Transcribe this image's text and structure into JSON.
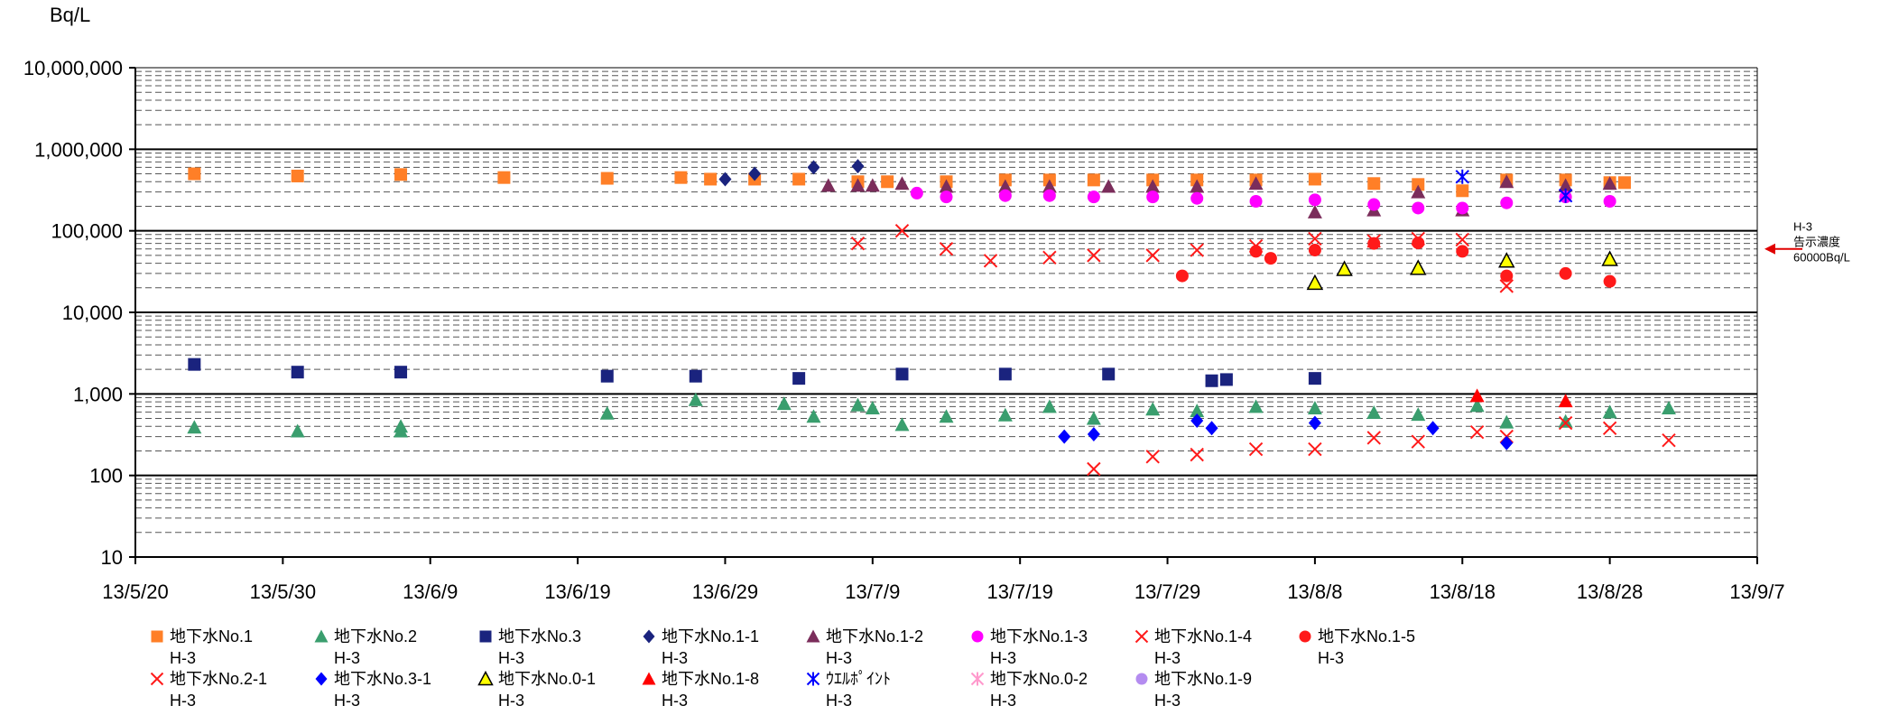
{
  "chart_data": {
    "type": "scatter",
    "title": "",
    "ylabel": "Bq/L",
    "xlabel": "",
    "y_scale": "log",
    "ylim": [
      10,
      10000000
    ],
    "xlim": [
      "2013-05-20",
      "2013-09-07"
    ],
    "y_ticks": [
      {
        "value": 10,
        "label": "10"
      },
      {
        "value": 100,
        "label": "100"
      },
      {
        "value": 1000,
        "label": "1,000"
      },
      {
        "value": 10000,
        "label": "10,000"
      },
      {
        "value": 100000,
        "label": "100,000"
      },
      {
        "value": 1000000,
        "label": "1,000,000"
      },
      {
        "value": 10000000,
        "label": "10,000,000"
      }
    ],
    "x_ticks": [
      {
        "date": "2013-05-20",
        "label": "13/5/20"
      },
      {
        "date": "2013-05-30",
        "label": "13/5/30"
      },
      {
        "date": "2013-06-09",
        "label": "13/6/9"
      },
      {
        "date": "2013-06-19",
        "label": "13/6/19"
      },
      {
        "date": "2013-06-29",
        "label": "13/6/29"
      },
      {
        "date": "2013-07-09",
        "label": "13/7/9"
      },
      {
        "date": "2013-07-19",
        "label": "13/7/19"
      },
      {
        "date": "2013-07-29",
        "label": "13/7/29"
      },
      {
        "date": "2013-08-08",
        "label": "13/8/8"
      },
      {
        "date": "2013-08-18",
        "label": "13/8/18"
      },
      {
        "date": "2013-08-28",
        "label": "13/8/28"
      },
      {
        "date": "2013-09-07",
        "label": "13/9/7"
      }
    ],
    "grid": "horizontal major solid, minor dashed",
    "legend_position": "bottom",
    "annotation": {
      "lines": [
        "H-3",
        "告示濃度",
        "60000Bq/L"
      ],
      "value": 60000,
      "color": "#e00000"
    },
    "series": [
      {
        "name": "地下水No.1",
        "sub": "H-3",
        "marker": "square",
        "color": "#ff7f27",
        "points": [
          [
            "2013-05-24",
            500000
          ],
          [
            "2013-05-31",
            470000
          ],
          [
            "2013-06-07",
            490000
          ],
          [
            "2013-06-14",
            450000
          ],
          [
            "2013-06-21",
            440000
          ],
          [
            "2013-06-26",
            450000
          ],
          [
            "2013-06-28",
            430000
          ],
          [
            "2013-07-01",
            430000
          ],
          [
            "2013-07-04",
            430000
          ],
          [
            "2013-07-08",
            400000
          ],
          [
            "2013-07-10",
            400000
          ],
          [
            "2013-07-14",
            400000
          ],
          [
            "2013-07-18",
            420000
          ],
          [
            "2013-07-21",
            420000
          ],
          [
            "2013-07-24",
            420000
          ],
          [
            "2013-07-28",
            420000
          ],
          [
            "2013-07-31",
            420000
          ],
          [
            "2013-08-04",
            420000
          ],
          [
            "2013-08-08",
            430000
          ],
          [
            "2013-08-12",
            380000
          ],
          [
            "2013-08-15",
            370000
          ],
          [
            "2013-08-18",
            310000
          ],
          [
            "2013-08-21",
            420000
          ],
          [
            "2013-08-25",
            420000
          ],
          [
            "2013-08-28",
            390000
          ],
          [
            "2013-08-29",
            390000
          ]
        ]
      },
      {
        "name": "地下水No.2",
        "sub": "H-3",
        "marker": "triangle",
        "color": "#3a9e6e",
        "points": [
          [
            "2013-05-24",
            390
          ],
          [
            "2013-05-31",
            350
          ],
          [
            "2013-06-07",
            350
          ],
          [
            "2013-06-07",
            400
          ],
          [
            "2013-06-21",
            580
          ],
          [
            "2013-06-27",
            850
          ],
          [
            "2013-07-03",
            760
          ],
          [
            "2013-07-05",
            530
          ],
          [
            "2013-07-08",
            730
          ],
          [
            "2013-07-09",
            670
          ],
          [
            "2013-07-11",
            420
          ],
          [
            "2013-07-14",
            530
          ],
          [
            "2013-07-18",
            550
          ],
          [
            "2013-07-21",
            700
          ],
          [
            "2013-07-24",
            500
          ],
          [
            "2013-07-28",
            650
          ],
          [
            "2013-07-31",
            620
          ],
          [
            "2013-08-04",
            700
          ],
          [
            "2013-08-08",
            670
          ],
          [
            "2013-08-12",
            590
          ],
          [
            "2013-08-15",
            560
          ],
          [
            "2013-08-19",
            720
          ],
          [
            "2013-08-21",
            450
          ],
          [
            "2013-08-25",
            460
          ],
          [
            "2013-08-28",
            600
          ],
          [
            "2013-09-01",
            670
          ]
        ]
      },
      {
        "name": "地下水No.3",
        "sub": "H-3",
        "marker": "square",
        "color": "#1a237e",
        "points": [
          [
            "2013-05-24",
            2300
          ],
          [
            "2013-05-31",
            1850
          ],
          [
            "2013-06-07",
            1850
          ],
          [
            "2013-06-21",
            1650
          ],
          [
            "2013-06-27",
            1650
          ],
          [
            "2013-07-04",
            1550
          ],
          [
            "2013-07-11",
            1750
          ],
          [
            "2013-07-18",
            1750
          ],
          [
            "2013-07-25",
            1750
          ],
          [
            "2013-08-01",
            1450
          ],
          [
            "2013-08-02",
            1500
          ],
          [
            "2013-08-08",
            1550
          ]
        ]
      },
      {
        "name": "地下水No.1-1",
        "sub": "H-3",
        "marker": "diamond",
        "color": "#1a237e",
        "points": [
          [
            "2013-06-29",
            430000
          ],
          [
            "2013-07-01",
            500000
          ],
          [
            "2013-07-05",
            600000
          ],
          [
            "2013-07-08",
            620000
          ]
        ]
      },
      {
        "name": "地下水No.1-2",
        "sub": "H-3",
        "marker": "triangle",
        "color": "#7b2d5b",
        "points": [
          [
            "2013-07-06",
            360000
          ],
          [
            "2013-07-08",
            360000
          ],
          [
            "2013-07-09",
            360000
          ],
          [
            "2013-07-11",
            380000
          ],
          [
            "2013-07-14",
            350000
          ],
          [
            "2013-07-18",
            350000
          ],
          [
            "2013-07-21",
            350000
          ],
          [
            "2013-07-25",
            350000
          ],
          [
            "2013-07-28",
            350000
          ],
          [
            "2013-07-31",
            350000
          ],
          [
            "2013-08-04",
            380000
          ],
          [
            "2013-08-08",
            170000
          ],
          [
            "2013-08-12",
            180000
          ],
          [
            "2013-08-15",
            300000
          ],
          [
            "2013-08-18",
            180000
          ],
          [
            "2013-08-21",
            400000
          ],
          [
            "2013-08-25",
            360000
          ],
          [
            "2013-08-28",
            380000
          ]
        ]
      },
      {
        "name": "地下水No.1-3",
        "sub": "H-3",
        "marker": "circle",
        "color": "#ff00ff",
        "points": [
          [
            "2013-07-12",
            290000
          ],
          [
            "2013-07-14",
            260000
          ],
          [
            "2013-07-18",
            270000
          ],
          [
            "2013-07-21",
            270000
          ],
          [
            "2013-07-24",
            260000
          ],
          [
            "2013-07-28",
            260000
          ],
          [
            "2013-07-31",
            250000
          ],
          [
            "2013-08-04",
            230000
          ],
          [
            "2013-08-08",
            240000
          ],
          [
            "2013-08-12",
            210000
          ],
          [
            "2013-08-15",
            190000
          ],
          [
            "2013-08-18",
            190000
          ],
          [
            "2013-08-21",
            220000
          ],
          [
            "2013-08-25",
            260000
          ],
          [
            "2013-08-28",
            230000
          ]
        ]
      },
      {
        "name": "地下水No.1-4",
        "sub": "H-3",
        "marker": "x",
        "color": "#ff1a1a",
        "points": [
          [
            "2013-07-08",
            70000
          ],
          [
            "2013-07-11",
            100000
          ],
          [
            "2013-07-14",
            60000
          ],
          [
            "2013-07-17",
            43000
          ],
          [
            "2013-07-21",
            47000
          ],
          [
            "2013-07-24",
            50000
          ],
          [
            "2013-07-28",
            50000
          ],
          [
            "2013-07-31",
            58000
          ],
          [
            "2013-08-04",
            65000
          ],
          [
            "2013-08-08",
            80000
          ],
          [
            "2013-08-12",
            75000
          ],
          [
            "2013-08-15",
            80000
          ],
          [
            "2013-08-18",
            78000
          ],
          [
            "2013-08-21",
            21000
          ]
        ]
      },
      {
        "name": "地下水No.1-5",
        "sub": "H-3",
        "marker": "circle",
        "color": "#ff1a1a",
        "points": [
          [
            "2013-07-30",
            28000
          ],
          [
            "2013-08-04",
            56000
          ],
          [
            "2013-08-05",
            46000
          ],
          [
            "2013-08-08",
            58000
          ],
          [
            "2013-08-12",
            70000
          ],
          [
            "2013-08-15",
            71000
          ],
          [
            "2013-08-18",
            56000
          ],
          [
            "2013-08-21",
            28000
          ],
          [
            "2013-08-25",
            30000
          ],
          [
            "2013-08-28",
            24000
          ]
        ]
      },
      {
        "name": "地下水No.2-1",
        "sub": "H-3",
        "marker": "x",
        "color": "#ff1a1a",
        "points": [
          [
            "2013-07-24",
            120
          ],
          [
            "2013-07-28",
            170
          ],
          [
            "2013-07-31",
            180
          ],
          [
            "2013-08-04",
            210
          ],
          [
            "2013-08-08",
            210
          ],
          [
            "2013-08-12",
            290
          ],
          [
            "2013-08-15",
            260
          ],
          [
            "2013-08-19",
            340
          ],
          [
            "2013-08-21",
            300
          ],
          [
            "2013-08-25",
            440
          ],
          [
            "2013-08-28",
            380
          ],
          [
            "2013-09-01",
            270
          ]
        ]
      },
      {
        "name": "地下水No.3-1",
        "sub": "H-3",
        "marker": "diamond",
        "color": "#0000ff",
        "points": [
          [
            "2013-07-22",
            300
          ],
          [
            "2013-07-24",
            320
          ],
          [
            "2013-07-31",
            470
          ],
          [
            "2013-08-01",
            380
          ],
          [
            "2013-08-08",
            440
          ],
          [
            "2013-08-16",
            380
          ],
          [
            "2013-08-21",
            250
          ]
        ]
      },
      {
        "name": "地下水No.0-1",
        "sub": "H-3",
        "marker": "triangle-open",
        "color": "#ffff00",
        "points": [
          [
            "2013-08-08",
            23000
          ],
          [
            "2013-08-10",
            34000
          ],
          [
            "2013-08-15",
            35000
          ],
          [
            "2013-08-21",
            43000
          ],
          [
            "2013-08-28",
            45000
          ]
        ]
      },
      {
        "name": "地下水No.1-8",
        "sub": "H-3",
        "marker": "triangle",
        "color": "#ff0000",
        "points": [
          [
            "2013-08-19",
            950
          ],
          [
            "2013-08-25",
            820
          ]
        ]
      },
      {
        "name": "ｳｴﾙﾎﾟｲﾝﾄ",
        "sub": "H-3",
        "marker": "asterisk",
        "color": "#0000ff",
        "points": [
          [
            "2013-08-18",
            460000
          ],
          [
            "2013-08-25",
            270000
          ]
        ]
      },
      {
        "name": "地下水No.0-2",
        "sub": "H-3",
        "marker": "asterisk",
        "color": "#ff99cc",
        "points": []
      },
      {
        "name": "地下水No.1-9",
        "sub": "H-3",
        "marker": "circle",
        "color": "#b48cf0",
        "points": []
      }
    ]
  }
}
